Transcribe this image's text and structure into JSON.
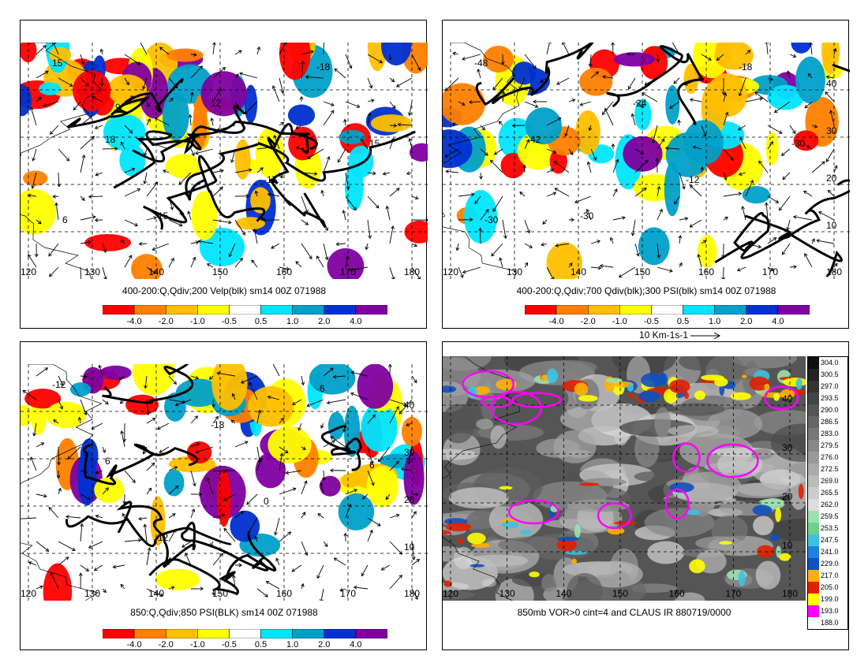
{
  "panels": [
    {
      "caption": "400-200:Q,Qdiv;200 Velp(blk) sm14 00Z 071988",
      "lon_ticks": [
        "120",
        "130",
        "140",
        "150",
        "160",
        "170",
        "180"
      ],
      "lat_ticks": [],
      "contour_labels": [
        "15",
        "18",
        "15",
        "12",
        "-15",
        "-18",
        "15",
        "6",
        "9"
      ]
    },
    {
      "caption": "400-200:Q,Qdiv;700 Qdiv(blk);300 PSI(blk) sm14 00Z 071988",
      "lon_ticks": [
        "120",
        "130",
        "140",
        "150",
        "160",
        "170",
        "180"
      ],
      "lat_ticks": [
        "40",
        "30",
        "20",
        "10"
      ],
      "contour_labels": [
        "-48",
        "-42",
        "-30",
        "-24",
        "-12",
        "-18",
        "-30",
        "-30"
      ]
    },
    {
      "caption": "850:Q,Qdiv;850 PSI(BLK) sm14 00Z 071988",
      "lon_ticks": [
        "120",
        "130",
        "140",
        "150",
        "160",
        "170",
        "180"
      ],
      "lat_ticks": [
        "40",
        "30",
        "20",
        "10"
      ],
      "contour_labels": [
        "-12",
        "6",
        "12",
        "-18",
        "0",
        "-6",
        "6"
      ]
    },
    {
      "caption": "850mb VOR>0 cint=4 and CLAUS IR 880719/0000",
      "lon_ticks": [
        "120",
        "130",
        "140",
        "150",
        "160",
        "170",
        "180"
      ],
      "lat_ticks": [
        "40",
        "30",
        "20",
        "10"
      ],
      "contour_labels": []
    }
  ],
  "colorbar": {
    "labels": [
      "-4.0",
      "-2.0",
      "-1.0",
      "-0.5",
      "0.5",
      "1.0",
      "2.0",
      "4.0"
    ],
    "colors": [
      "#ff0000",
      "#ff8000",
      "#ffbf00",
      "#ffff00",
      "#ffffff",
      "#00e5ff",
      "#00a0c8",
      "#0030d0",
      "#8000a0"
    ]
  },
  "vector_legend": "10 Km-1s-1",
  "ir_scale": {
    "labels": [
      "304.0",
      "300.5",
      "297.0",
      "293.5",
      "290.0",
      "286.5",
      "283.0",
      "279.5",
      "276.0",
      "272.5",
      "269.0",
      "265.5",
      "262.0",
      "259.5",
      "253.5",
      "247.5",
      "241.0",
      "229.0",
      "217.0",
      "205.0",
      "199.0",
      "193.0",
      "188.0"
    ],
    "colors": [
      "#101010",
      "#222222",
      "#333333",
      "#444444",
      "#555555",
      "#666666",
      "#777777",
      "#888888",
      "#999999",
      "#aaaaaa",
      "#bbbbbb",
      "#cccccc",
      "#dddddd",
      "#9de0b0",
      "#6fd08a",
      "#40c0e0",
      "#2080e0",
      "#1050c0",
      "#ffb000",
      "#e02000",
      "#ffff00",
      "#ff00ff",
      "#ffffff"
    ]
  }
}
